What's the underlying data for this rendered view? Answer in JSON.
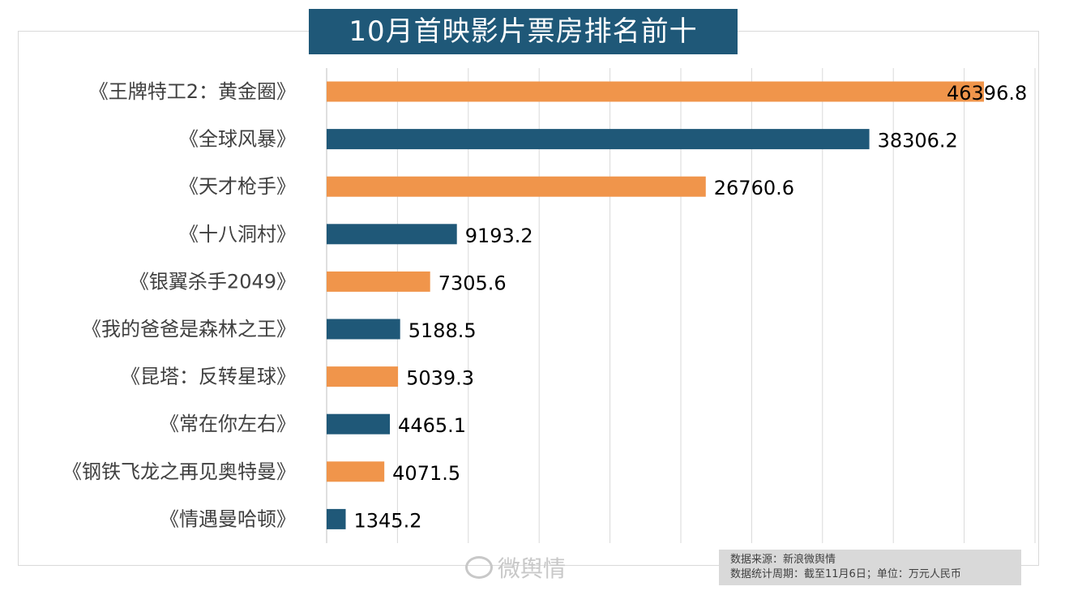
{
  "title": "10月首映影片票房排名前十",
  "source": {
    "line1": "数据来源：新浪微舆情",
    "line2": "数据统计周期：截至11月6日；单位：万元人民币"
  },
  "watermark": "微舆情",
  "colors": {
    "title_bg": "#1f5878",
    "bar_orange": "#f0954b",
    "bar_blue": "#1f5878",
    "grid": "#d9d9d9",
    "label_text": "#404040"
  },
  "chart_data": {
    "type": "bar",
    "orientation": "horizontal",
    "categories": [
      "《王牌特工2：黄金圈》",
      "《全球风暴》",
      "《天才枪手》",
      "《十八洞村》",
      "《银翼杀手2049》",
      "《我的爸爸是森林之王》",
      "《昆塔：反转星球》",
      "《常在你左右》",
      "《钢铁飞龙之再见奥特曼》",
      "《情遇曼哈顿》"
    ],
    "values": [
      46396.8,
      38306.2,
      26760.6,
      9193.2,
      7305.6,
      5188.5,
      5039.3,
      4465.1,
      4071.5,
      1345.2
    ],
    "value_labels": [
      "46396.8",
      "38306.2",
      "26760.6",
      "9193.2",
      "7305.6",
      "5188.5",
      "5039.3",
      "4465.1",
      "4071.5",
      "1345.2"
    ],
    "bar_colors": [
      "#f0954b",
      "#1f5878",
      "#f0954b",
      "#1f5878",
      "#f0954b",
      "#1f5878",
      "#f0954b",
      "#1f5878",
      "#f0954b",
      "#1f5878"
    ],
    "xlim": [
      0,
      50000
    ],
    "x_grid_step": 5000,
    "grid": true,
    "tick_labels_shown": false
  }
}
